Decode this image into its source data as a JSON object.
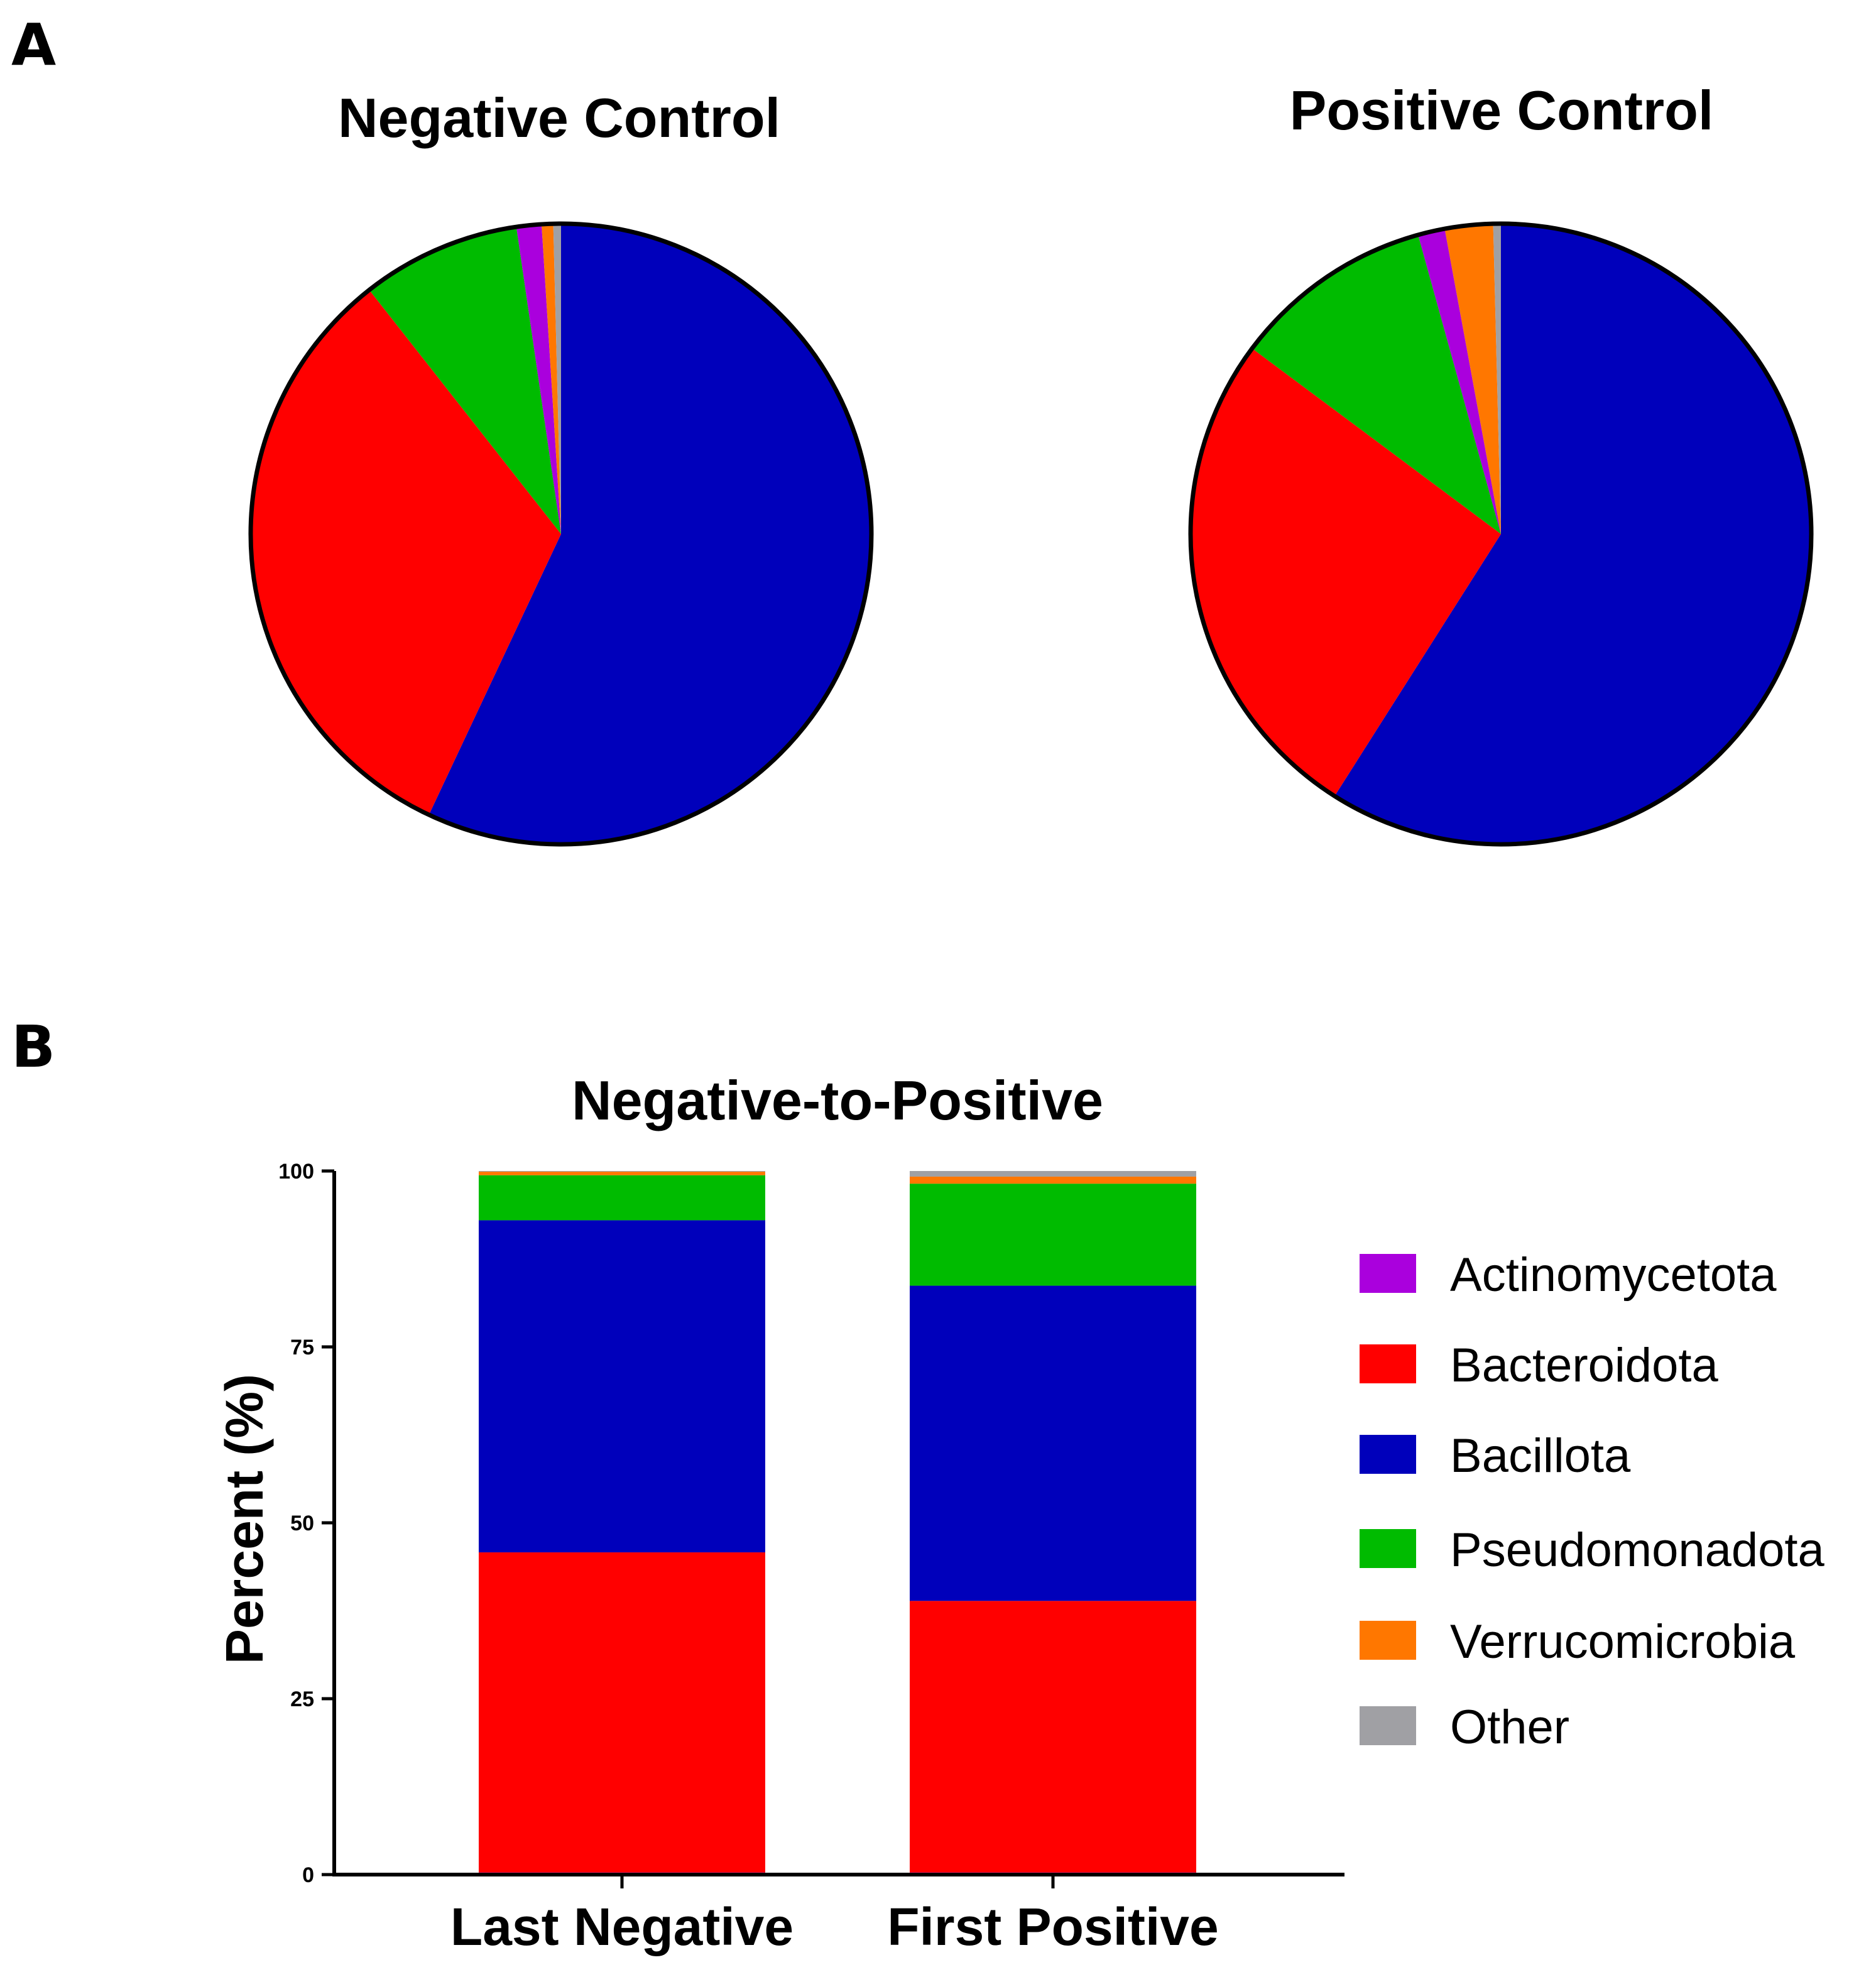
{
  "panel_labels": {
    "a": "A",
    "b": "B"
  },
  "colors": {
    "Actinomycetota": "#aa00dd",
    "Bacteroidota": "#ff0000",
    "Bacillota": "#0000bb",
    "Pseudomonadota": "#00bb00",
    "Verrucomicrobia": "#ff7700",
    "Other": "#a0a0a4"
  },
  "chart_data": [
    {
      "type": "pie",
      "title": "Negative Control",
      "labels": [
        "Bacillota",
        "Bacteroidota",
        "Pseudomonadota",
        "Actinomycetota",
        "Verrucomicrobia",
        "Other"
      ],
      "values": [
        57.0,
        32.4,
        8.3,
        1.3,
        0.6,
        0.4
      ],
      "start": "12 o'clock",
      "direction": "clockwise"
    },
    {
      "type": "pie",
      "title": "Positive Control",
      "labels": [
        "Bacillota",
        "Bacteroidota",
        "Pseudomonadota",
        "Actinomycetota",
        "Verrucomicrobia",
        "Other"
      ],
      "values": [
        59.0,
        26.2,
        10.5,
        1.4,
        2.5,
        0.4
      ],
      "start": "12 o'clock",
      "direction": "clockwise"
    },
    {
      "type": "bar",
      "stacked": true,
      "title": "Negative-to-Positive",
      "categories": [
        "Last Negative",
        "First Positive"
      ],
      "series": [
        {
          "name": "Actinomycetota",
          "values": [
            0.3,
            0.3
          ]
        },
        {
          "name": "Bacteroidota",
          "values": [
            45.5,
            38.6
          ]
        },
        {
          "name": "Bacillota",
          "values": [
            47.2,
            44.8
          ]
        },
        {
          "name": "Pseudomonadota",
          "values": [
            6.4,
            14.5
          ]
        },
        {
          "name": "Verrucomicrobia",
          "values": [
            0.5,
            1.0
          ]
        },
        {
          "name": "Other",
          "values": [
            0.1,
            0.8
          ]
        }
      ],
      "ylabel": "Percent (%)",
      "xlabel": "",
      "ylim": [
        0,
        100
      ],
      "yticks": [
        0,
        25,
        50,
        75,
        100
      ],
      "legend": [
        "Actinomycetota",
        "Bacteroidota",
        "Bacillota",
        "Pseudomonadota",
        "Verrucomicrobia",
        "Other"
      ],
      "legend_position": "right"
    }
  ]
}
